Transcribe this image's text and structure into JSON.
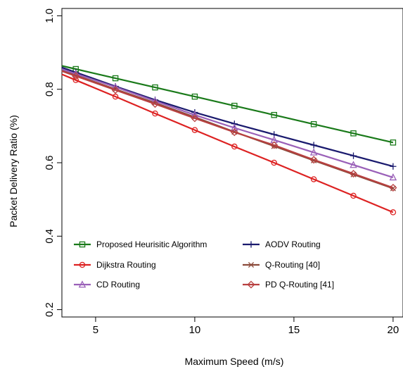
{
  "chart_data": {
    "type": "line",
    "xlabel": "Maximum Speed (m/s)",
    "ylabel": "Packet Delivery Ratio (%)",
    "xlim": [
      3.3,
      20.5
    ],
    "ylim": [
      0.18,
      1.02
    ],
    "xticks": [
      5,
      10,
      15,
      20
    ],
    "yticks": [
      0.2,
      0.4,
      0.6,
      0.8,
      1.0
    ],
    "xtick_labels": [
      "5",
      "10",
      "15",
      "20"
    ],
    "ytick_labels": [
      "0.2",
      "0.4",
      "0.6",
      "0.8",
      "1.0"
    ],
    "grid": false,
    "legend_position": "bottom-left",
    "line_extent": [
      3.3,
      20
    ],
    "x": [
      4,
      6,
      8,
      10,
      12,
      14,
      16,
      18,
      20
    ],
    "series": [
      {
        "name": "Proposed Heurisitic Algorithm",
        "color": "#1a7a1a",
        "marker": "square",
        "values": [
          0.855,
          0.83,
          0.805,
          0.78,
          0.755,
          0.73,
          0.705,
          0.68,
          0.655
        ]
      },
      {
        "name": "AODV Routing",
        "color": "#1a1a6e",
        "marker": "plus",
        "values": [
          0.846,
          0.808,
          0.771,
          0.737,
          0.706,
          0.677,
          0.648,
          0.619,
          0.59
        ]
      },
      {
        "name": "Dijkstra Routing",
        "color": "#dd2222",
        "marker": "circle",
        "values": [
          0.825,
          0.78,
          0.734,
          0.689,
          0.644,
          0.6,
          0.555,
          0.51,
          0.465
        ]
      },
      {
        "name": "Q-Routing [40]",
        "color": "#8b4a3a",
        "marker": "x",
        "values": [
          0.838,
          0.8,
          0.763,
          0.724,
          0.684,
          0.645,
          0.606,
          0.568,
          0.53
        ]
      },
      {
        "name": "CD Routing",
        "color": "#9a60b8",
        "marker": "triangle",
        "values": [
          0.842,
          0.806,
          0.768,
          0.73,
          0.695,
          0.662,
          0.628,
          0.594,
          0.56
        ]
      },
      {
        "name": "PD Q-Routing [41]",
        "color": "#b84040",
        "marker": "diamond",
        "values": [
          0.836,
          0.798,
          0.76,
          0.721,
          0.683,
          0.648,
          0.608,
          0.57,
          0.532
        ]
      }
    ]
  }
}
